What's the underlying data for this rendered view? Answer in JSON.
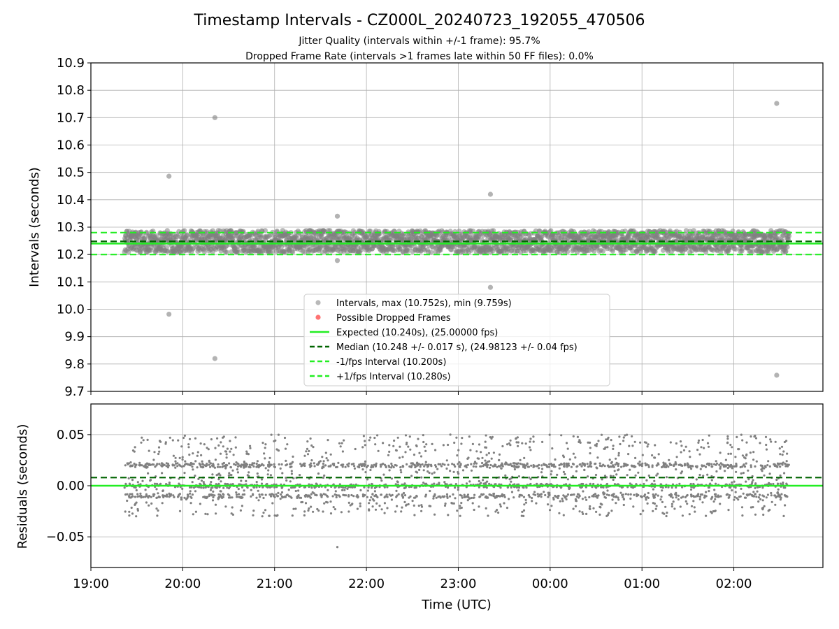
{
  "figure": {
    "title": "Timestamp Intervals - CZ000L_20240723_192055_470506",
    "subtitle_1": "Jitter Quality (intervals within +/-1 frame): 95.7%",
    "subtitle_2": "Dropped Frame Rate (intervals >1 frames late within 50 FF files): 0.0%",
    "xlabel": "Time (UTC)"
  },
  "colors": {
    "points": "#808080",
    "dropped": "#ff0000",
    "expected": "#22ee22",
    "median": "#006400",
    "interval": "#22ee22",
    "grid": "#b0b0b0",
    "axes": "#000000"
  },
  "chart_data": [
    {
      "type": "scatter",
      "ylabel": "Intervals (seconds)",
      "ylim": [
        9.7,
        10.9
      ],
      "yticks": [
        "10.9",
        "10.8",
        "10.7",
        "10.6",
        "10.5",
        "10.4",
        "10.3",
        "10.2",
        "10.1",
        "10.0",
        "9.9",
        "9.8",
        "9.7"
      ],
      "xlim_hours": [
        19.0,
        26.97
      ],
      "grid": true,
      "legend_position": "lower-center",
      "legend": [
        {
          "label": "Intervals, max (10.752s), min (9.759s)",
          "kind": "point",
          "color": "#808080"
        },
        {
          "label": "Possible Dropped Frames",
          "kind": "point",
          "color": "#ff0000"
        },
        {
          "label": "Expected (10.240s), (25.00000 fps)",
          "kind": "solid",
          "color": "#22ee22"
        },
        {
          "label": "Median (10.248 +/- 0.017 s), (24.98123 +/- 0.04 fps)",
          "kind": "dashed",
          "color": "#006400"
        },
        {
          "label": "-1/fps Interval (10.200s)",
          "kind": "dashed",
          "color": "#22ee22"
        },
        {
          "label": "+1/fps Interval (10.280s)",
          "kind": "dashed",
          "color": "#22ee22"
        }
      ],
      "reference_lines": {
        "expected": 10.24,
        "median": 10.248,
        "minus_1fps": 10.2,
        "plus_1fps": 10.28
      },
      "series": [
        {
          "name": "Intervals, max (10.752s), min (9.759s)",
          "distribution": {
            "x_start": "19:22",
            "x_end": "02:36",
            "center": 10.248,
            "spread": 0.017,
            "count": 2500
          }
        },
        {
          "name": "Possible Dropped Frames",
          "points": []
        }
      ],
      "outliers": [
        {
          "x": "19:51",
          "y": 10.486
        },
        {
          "x": "19:51",
          "y": 9.982
        },
        {
          "x": "20:21",
          "y": 10.7
        },
        {
          "x": "20:21",
          "y": 9.82
        },
        {
          "x": "21:41",
          "y": 10.34
        },
        {
          "x": "21:41",
          "y": 10.178
        },
        {
          "x": "23:21",
          "y": 10.42
        },
        {
          "x": "23:21",
          "y": 10.08
        },
        {
          "x": "02:28",
          "y": 10.752
        },
        {
          "x": "02:28",
          "y": 9.759
        }
      ]
    },
    {
      "type": "scatter",
      "ylabel": "Residuals (seconds)",
      "ylim": [
        -0.08,
        0.08
      ],
      "yticks": [
        "0.05",
        "0.00",
        "−0.05"
      ],
      "xticks": [
        "19:00",
        "20:00",
        "21:00",
        "22:00",
        "23:00",
        "00:00",
        "01:00",
        "02:00"
      ],
      "grid": true,
      "reference_lines": {
        "expected": 0.0,
        "median": 0.008
      },
      "series": [
        {
          "name": "",
          "distribution": {
            "x_start": "19:22",
            "x_end": "02:36",
            "bands": [
              0.02,
              0.0,
              -0.01
            ],
            "range": [
              -0.06,
              0.053
            ],
            "count": 2500
          }
        }
      ]
    }
  ]
}
